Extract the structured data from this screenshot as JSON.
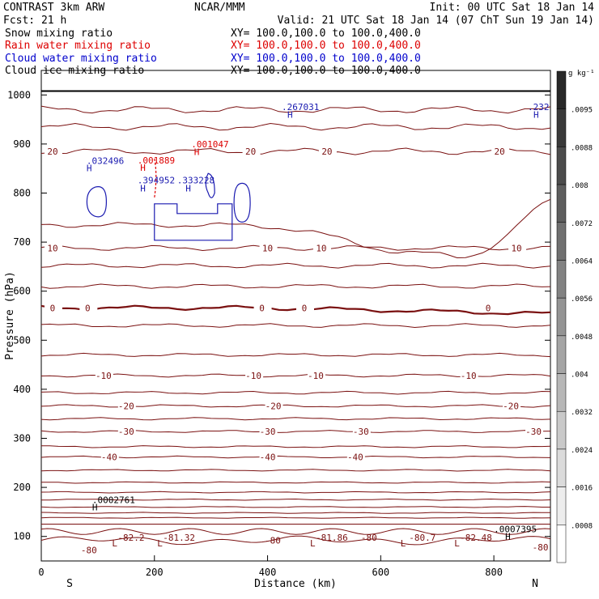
{
  "header": {
    "left_line1": "CONTRAST  3km ARW",
    "left_line2": "Fcst:   21 h",
    "center": "NCAR/MMM",
    "init": "Init: 00 UTC Sat 18 Jan 14",
    "valid": "Valid: 21 UTC Sat 18 Jan 14 (07 ChT Sun 19 Jan 14)"
  },
  "fields": [
    {
      "label": "Snow mixing ratio",
      "xy": "XY= 100.0,100.0 to 100.0,400.0",
      "color": "#000000"
    },
    {
      "label": "Rain water mixing ratio",
      "xy": "XY= 100.0,100.0 to 100.0,400.0",
      "color": "#dd0000"
    },
    {
      "label": "Cloud water mixing ratio",
      "xy": "XY= 100.0,100.0 to 100.0,400.0",
      "color": "#0000cc"
    },
    {
      "label": "Cloud ice mixing ratio",
      "xy": "XY= 100.0,100.0 to 100.0,400.0",
      "color": "#000000"
    }
  ],
  "colors": {
    "temperature": "#7a1010",
    "rain": "#dd0000",
    "cloud_water": "#1a1ab0",
    "frame": "#000000"
  },
  "chart_data": {
    "type": "line",
    "xlabel": "Distance (km)",
    "ylabel": "Pressure (hPa)",
    "xlim": [
      0,
      900
    ],
    "ylim": [
      1050,
      50
    ],
    "x_ticks": [
      0,
      200,
      400,
      600,
      800
    ],
    "y_ticks": [
      100,
      200,
      300,
      400,
      500,
      600,
      700,
      800,
      900,
      1000
    ],
    "x_end_labels": {
      "left": "S",
      "right": "N"
    },
    "colorbar": {
      "unit": "g kg⁻¹",
      "ticks": [
        ".0095",
        ".0088",
        ".008",
        ".0072",
        ".0064",
        ".0056",
        ".0048",
        ".004",
        ".0032",
        ".0024",
        ".0016",
        ".0008"
      ]
    },
    "isotherm_levels": [
      {
        "p": 138
      },
      {
        "p": 148
      },
      {
        "p": 160
      },
      {
        "p": 175
      },
      {
        "p": 190
      },
      {
        "p": 210,
        "label": "",
        "label_x": []
      },
      {
        "p": 235,
        "label": "",
        "label_x": []
      },
      {
        "p": 262,
        "label": "-40",
        "label_x": [
          120,
          400,
          555
        ]
      },
      {
        "p": 283,
        "label": "",
        "label_x": []
      },
      {
        "p": 314,
        "label": "-30",
        "label_x": [
          150,
          400,
          565,
          870
        ]
      },
      {
        "p": 340,
        "label": "",
        "label_x": []
      },
      {
        "p": 366,
        "label": "-20",
        "label_x": [
          150,
          410,
          830
        ]
      },
      {
        "p": 393,
        "label": "",
        "label_x": []
      },
      {
        "p": 428,
        "label": "-10",
        "label_x": [
          110,
          375,
          485,
          755
        ]
      },
      {
        "p": 470,
        "label": "",
        "label_x": []
      },
      {
        "p": 530,
        "label": "",
        "label_x": []
      },
      {
        "p": 566,
        "label": "0",
        "label_x": [
          20,
          82,
          390,
          465,
          790
        ],
        "thick": true
      },
      {
        "p": 610,
        "label": "",
        "label_x": []
      },
      {
        "p": 652,
        "label": "",
        "label_x": []
      },
      {
        "p": 688,
        "label": "10",
        "label_x": [
          20,
          400,
          495,
          840
        ]
      },
      {
        "p": 735,
        "label": "",
        "label_x": []
      },
      {
        "p": 885,
        "label": "20",
        "label_x": [
          20,
          370,
          505,
          810
        ]
      },
      {
        "p": 935,
        "label": "",
        "label_x": []
      },
      {
        "p": 970,
        "label": "",
        "label_x": []
      }
    ],
    "upper_labels": [
      {
        "text": "-80",
        "x": 70,
        "p": 72
      },
      {
        "text": "L",
        "x": 125,
        "p": 86
      },
      {
        "text": "-82.2",
        "x": 135,
        "p": 98
      },
      {
        "text": "L",
        "x": 205,
        "p": 86
      },
      {
        "text": "-81.32",
        "x": 215,
        "p": 98
      },
      {
        "text": "-80",
        "x": 395,
        "p": 92
      },
      {
        "text": "L",
        "x": 475,
        "p": 86
      },
      {
        "text": "-81.86",
        "x": 485,
        "p": 98
      },
      {
        "text": "-80",
        "x": 565,
        "p": 98
      },
      {
        "text": "L",
        "x": 635,
        "p": 86
      },
      {
        "text": "-80.7",
        "x": 650,
        "p": 98
      },
      {
        "text": "L",
        "x": 730,
        "p": 86
      },
      {
        "text": "-82.48",
        "x": 740,
        "p": 98
      },
      {
        "text": "-80",
        "x": 868,
        "p": 78
      }
    ],
    "maxima": [
      {
        "text": "H",
        "x": 820,
        "p": 100,
        "color": "#000000"
      },
      {
        "text": ".0007395",
        "x": 800,
        "p": 115,
        "color": "#000000"
      },
      {
        "text": "H",
        "x": 90,
        "p": 160,
        "color": "#000000"
      },
      {
        "text": ".0002761",
        "x": 90,
        "p": 175,
        "color": "#000000"
      },
      {
        "text": "H",
        "x": 175,
        "p": 810,
        "color": "#1a1ab0"
      },
      {
        "text": ".394952",
        "x": 170,
        "p": 826,
        "color": "#1a1ab0"
      },
      {
        "text": "H",
        "x": 255,
        "p": 810,
        "color": "#1a1ab0"
      },
      {
        "text": ".333228",
        "x": 240,
        "p": 826,
        "color": "#1a1ab0"
      },
      {
        "text": "H",
        "x": 80,
        "p": 851,
        "color": "#1a1ab0"
      },
      {
        "text": ".032496",
        "x": 80,
        "p": 866,
        "color": "#1a1ab0"
      },
      {
        "text": "H",
        "x": 175,
        "p": 852,
        "color": "#dd0000"
      },
      {
        "text": ".001889",
        "x": 170,
        "p": 867,
        "color": "#dd0000"
      },
      {
        "text": "H",
        "x": 270,
        "p": 884,
        "color": "#dd0000"
      },
      {
        "text": ".001047",
        "x": 265,
        "p": 900,
        "color": "#dd0000"
      },
      {
        "text": "H",
        "x": 435,
        "p": 960,
        "color": "#1a1ab0"
      },
      {
        "text": ".267031",
        "x": 425,
        "p": 976,
        "color": "#1a1ab0"
      },
      {
        "text": "H",
        "x": 870,
        "p": 960,
        "color": "#1a1ab0"
      },
      {
        "text": ".232",
        "x": 860,
        "p": 976,
        "color": "#1a1ab0"
      }
    ]
  }
}
